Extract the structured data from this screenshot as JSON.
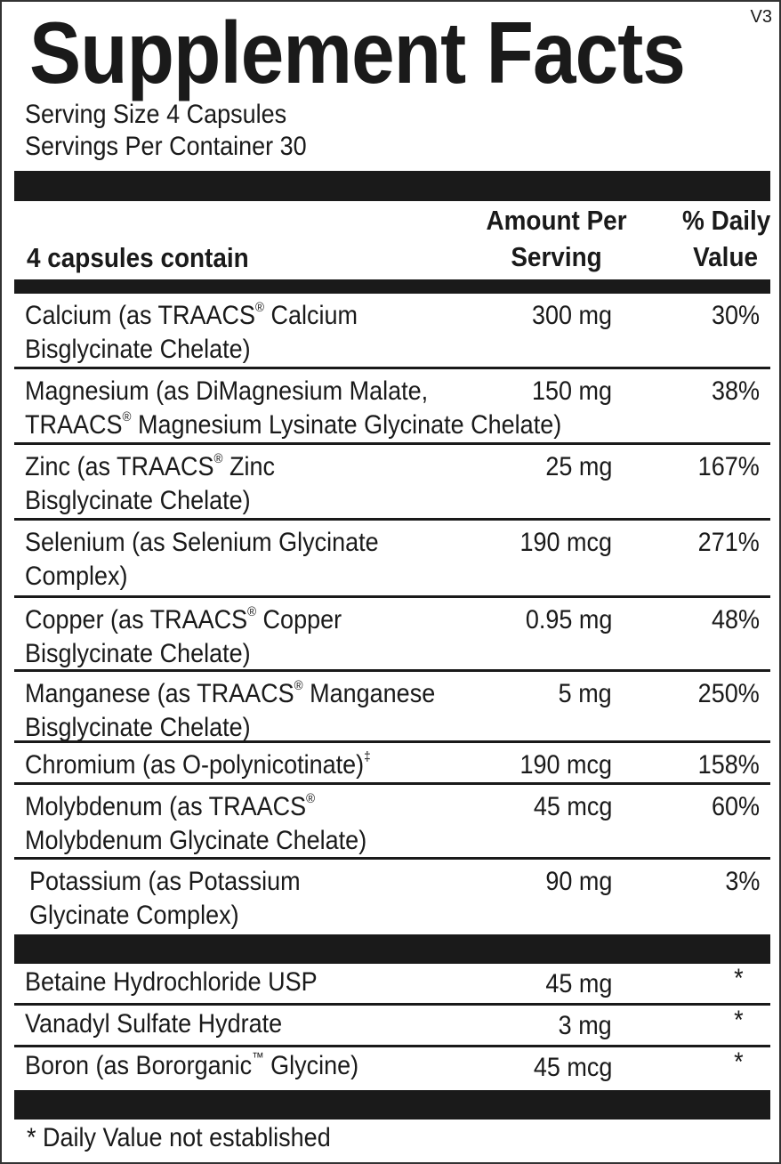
{
  "title": "Supplement Facts",
  "version": "V3",
  "serving_size": "Serving Size 4 Capsules",
  "servings_per_container": "Servings Per Container 30",
  "header": {
    "contain": "4 capsules contain",
    "amount_line1": "Amount Per",
    "amount_line2": "Serving",
    "dv_line1": "% Daily",
    "dv_line2": "Value"
  },
  "rows": [
    {
      "line1": "Calcium (as TRAACS® Calcium",
      "line2": "Bisglycinate Chelate)",
      "amount": "300 mg",
      "dv": "30%"
    },
    {
      "line1": "Magnesium (as DiMagnesium Malate,",
      "line2": "TRAACS® Magnesium Lysinate Glycinate Chelate)",
      "amount": "150 mg",
      "dv": "38%"
    },
    {
      "line1": "Zinc (as TRAACS® Zinc",
      "line2": "Bisglycinate Chelate)",
      "amount": "25 mg",
      "dv": "167%"
    },
    {
      "line1": "Selenium (as Selenium Glycinate",
      "line2": "Complex)",
      "amount": "190 mcg",
      "dv": "271%"
    },
    {
      "line1": "Copper (as TRAACS® Copper",
      "line2": "Bisglycinate Chelate)",
      "amount": "0.95 mg",
      "dv": "48%"
    },
    {
      "line1": "Manganese (as TRAACS® Manganese",
      "line2": "Bisglycinate Chelate)",
      "amount": "5 mg",
      "dv": "250%"
    },
    {
      "line1": "Chromium (as O-polynicotinate)‡",
      "line2": "",
      "amount": "190 mcg",
      "dv": "158%"
    },
    {
      "line1": "Molybdenum (as TRAACS®",
      "line2": "Molybdenum Glycinate Chelate)",
      "amount": "45 mcg",
      "dv": "60%"
    },
    {
      "line1": "Potassium (as Potassium",
      "line2": "Glycinate Complex)",
      "amount": "90 mg",
      "dv": "3%"
    }
  ],
  "other_rows": [
    {
      "line1": "Betaine Hydrochloride USP",
      "amount": "45 mg",
      "dv": "*"
    },
    {
      "line1": "Vanadyl Sulfate Hydrate",
      "amount": "3 mg",
      "dv": "*"
    },
    {
      "line1": "Boron (as Bororganic™ Glycine)",
      "amount": "45 mcg",
      "dv": "*"
    }
  ],
  "footnote": "* Daily Value not established"
}
